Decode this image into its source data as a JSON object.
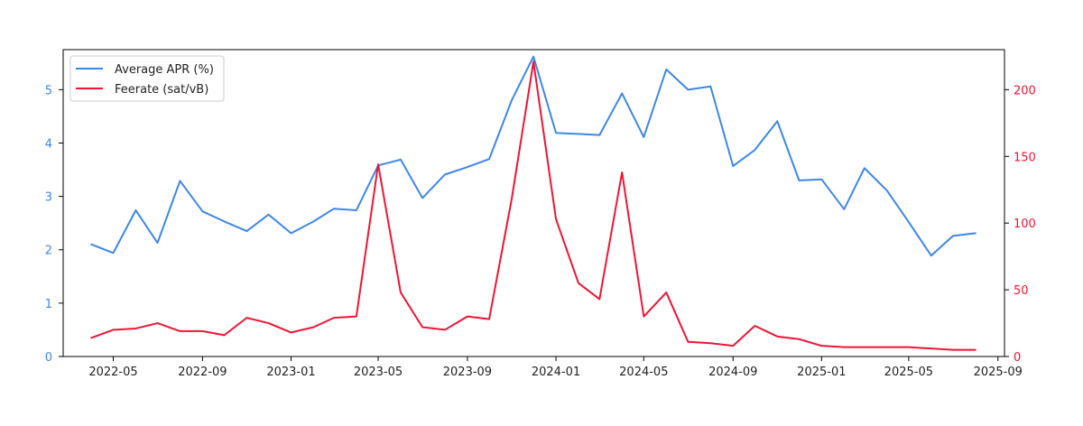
{
  "chart_data": {
    "type": "line",
    "x_type": "date",
    "x_ticks": [
      "2022-05",
      "2022-09",
      "2023-01",
      "2023-05",
      "2023-09",
      "2024-01",
      "2024-05",
      "2024-09",
      "2025-01",
      "2025-05",
      "2025-09"
    ],
    "xlim": [
      "2022-02-21",
      "2025-09-10"
    ],
    "x": [
      "2022-04-01",
      "2022-05-01",
      "2022-06-01",
      "2022-07-01",
      "2022-08-01",
      "2022-09-01",
      "2022-10-01",
      "2022-11-01",
      "2022-12-01",
      "2023-01-01",
      "2023-02-01",
      "2023-03-01",
      "2023-04-01",
      "2023-05-01",
      "2023-06-01",
      "2023-07-01",
      "2023-08-01",
      "2023-09-01",
      "2023-10-01",
      "2023-11-01",
      "2023-12-01",
      "2024-01-01",
      "2024-02-01",
      "2024-03-01",
      "2024-04-01",
      "2024-05-01",
      "2024-06-01",
      "2024-07-01",
      "2024-08-01",
      "2024-09-01",
      "2024-10-01",
      "2024-11-01",
      "2024-12-01",
      "2025-01-01",
      "2025-02-01",
      "2025-03-01",
      "2025-04-01",
      "2025-05-01",
      "2025-06-01",
      "2025-07-01",
      "2025-08-01"
    ],
    "series": [
      {
        "name": "Average APR (%)",
        "axis": "left",
        "color": "#3d87ea",
        "values": [
          2.1,
          1.94,
          2.74,
          2.13,
          3.29,
          2.72,
          2.53,
          2.35,
          2.66,
          2.31,
          2.53,
          2.77,
          2.74,
          3.58,
          3.69,
          2.97,
          3.41,
          3.55,
          3.7,
          4.8,
          5.62,
          4.19,
          4.17,
          4.15,
          4.93,
          4.11,
          5.38,
          5.0,
          5.06,
          3.57,
          3.87,
          4.41,
          3.3,
          3.32,
          2.76,
          3.53,
          3.11,
          2.52,
          1.89,
          2.26,
          2.31
        ]
      },
      {
        "name": "Feerate (sat/vB)",
        "axis": "right",
        "color": "#ef1534",
        "values": [
          14,
          20,
          21,
          25,
          19,
          19,
          16,
          29,
          25,
          18,
          22,
          29,
          30,
          144,
          48,
          22,
          20,
          30,
          28,
          118,
          221,
          103,
          55,
          43,
          138,
          30,
          48,
          11,
          10,
          8,
          23,
          15,
          13,
          8,
          7,
          7,
          7,
          7,
          6,
          5,
          5
        ]
      }
    ],
    "y_left": {
      "lim": [
        0,
        5.75
      ],
      "ticks": [
        0,
        1,
        2,
        3,
        4,
        5
      ],
      "color": "#3d87ea"
    },
    "y_right": {
      "lim": [
        0,
        230
      ],
      "ticks": [
        0,
        50,
        100,
        150,
        200
      ],
      "color": "#ef1534"
    },
    "legend": "upper-left",
    "grid": false,
    "title": "",
    "xlabel": "",
    "ylabel": ""
  }
}
